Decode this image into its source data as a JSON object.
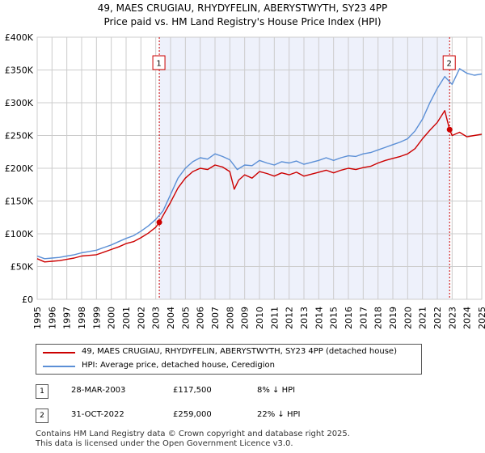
{
  "title_line1": "49, MAES CRUGIAU, RHYDYFELIN, ABERYSTWYTH, SY23 4PP",
  "title_line2": "Price paid vs. HM Land Registry's House Price Index (HPI)",
  "colors": {
    "property": "#cc0000",
    "hpi": "#5b8fd6",
    "band": "#eef1fb",
    "grid": "#cccccc",
    "marker": "#cc0000"
  },
  "chart_data": {
    "type": "line",
    "title": "49, MAES CRUGIAU, RHYDYFELIN, ABERYSTWYTH, SY23 4PP — Price paid vs. HM Land Registry's House Price Index (HPI)",
    "xlabel": "",
    "ylabel": "",
    "xlim": [
      1995,
      2025
    ],
    "ylim": [
      0,
      400000
    ],
    "y_ticks": [
      0,
      50000,
      100000,
      150000,
      200000,
      250000,
      300000,
      350000,
      400000
    ],
    "y_tick_labels": [
      "£0",
      "£50K",
      "£100K",
      "£150K",
      "£200K",
      "£250K",
      "£300K",
      "£350K",
      "£400K"
    ],
    "x_ticks": [
      1995,
      1996,
      1997,
      1998,
      1999,
      2000,
      2001,
      2002,
      2003,
      2004,
      2005,
      2006,
      2007,
      2008,
      2009,
      2010,
      2011,
      2012,
      2013,
      2014,
      2015,
      2016,
      2017,
      2018,
      2019,
      2020,
      2021,
      2022,
      2023,
      2024,
      2025
    ],
    "grid": true,
    "shaded_ranges": [
      [
        2003.24,
        2022.83
      ]
    ],
    "series": [
      {
        "name": "49, MAES CRUGIAU, RHYDYFELIN, ABERYSTWYTH, SY23 4PP (detached house)",
        "color": "#cc0000",
        "x": [
          1995,
          1995.5,
          1996,
          1996.5,
          1997,
          1997.5,
          1998,
          1998.5,
          1999,
          1999.5,
          2000,
          2000.5,
          2001,
          2001.5,
          2002,
          2002.5,
          2003,
          2003.24,
          2003.5,
          2004,
          2004.5,
          2005,
          2005.5,
          2006,
          2006.5,
          2007,
          2007.5,
          2008,
          2008.3,
          2008.6,
          2009,
          2009.5,
          2010,
          2010.5,
          2011,
          2011.5,
          2012,
          2012.5,
          2013,
          2013.5,
          2014,
          2014.5,
          2015,
          2015.5,
          2016,
          2016.5,
          2017,
          2017.5,
          2018,
          2018.5,
          2019,
          2019.5,
          2020,
          2020.5,
          2021,
          2021.5,
          2022,
          2022.5,
          2022.83,
          2023,
          2023.5,
          2024,
          2024.5,
          2025
        ],
        "values": [
          62000,
          57000,
          58000,
          59000,
          61000,
          63000,
          66000,
          67000,
          68000,
          72000,
          76000,
          80000,
          85000,
          88000,
          94000,
          101000,
          110000,
          117500,
          128000,
          148000,
          170000,
          185000,
          195000,
          200000,
          198000,
          205000,
          202000,
          195000,
          168000,
          182000,
          190000,
          185000,
          195000,
          192000,
          188000,
          193000,
          190000,
          194000,
          188000,
          191000,
          194000,
          197000,
          193000,
          197000,
          200000,
          198000,
          201000,
          203000,
          208000,
          212000,
          215000,
          218000,
          222000,
          230000,
          245000,
          258000,
          270000,
          288000,
          259000,
          250000,
          255000,
          248000,
          250000,
          252000
        ]
      },
      {
        "name": "HPI: Average price, detached house, Ceredigion",
        "color": "#5b8fd6",
        "x": [
          1995,
          1995.5,
          1996,
          1996.5,
          1997,
          1997.5,
          1998,
          1998.5,
          1999,
          1999.5,
          2000,
          2000.5,
          2001,
          2001.5,
          2002,
          2002.5,
          2003,
          2003.5,
          2004,
          2004.5,
          2005,
          2005.5,
          2006,
          2006.5,
          2007,
          2007.5,
          2008,
          2008.5,
          2009,
          2009.5,
          2010,
          2010.5,
          2011,
          2011.5,
          2012,
          2012.5,
          2013,
          2013.5,
          2014,
          2014.5,
          2015,
          2015.5,
          2016,
          2016.5,
          2017,
          2017.5,
          2018,
          2018.5,
          2019,
          2019.5,
          2020,
          2020.5,
          2021,
          2021.5,
          2022,
          2022.5,
          2023,
          2023.5,
          2024,
          2024.5,
          2025
        ],
        "values": [
          66000,
          62000,
          63000,
          64000,
          66000,
          68000,
          71000,
          73000,
          75000,
          79000,
          83000,
          88000,
          93000,
          97000,
          104000,
          112000,
          122000,
          135000,
          160000,
          185000,
          200000,
          210000,
          216000,
          214000,
          222000,
          218000,
          213000,
          198000,
          205000,
          204000,
          212000,
          208000,
          205000,
          210000,
          208000,
          211000,
          206000,
          209000,
          212000,
          216000,
          212000,
          216000,
          219000,
          218000,
          222000,
          224000,
          228000,
          232000,
          236000,
          240000,
          245000,
          257000,
          275000,
          300000,
          322000,
          340000,
          328000,
          352000,
          345000,
          342000,
          344000
        ]
      }
    ],
    "annotations": [
      {
        "label": "1",
        "x": 2003.24,
        "y": 117500
      },
      {
        "label": "2",
        "x": 2022.83,
        "y": 259000
      }
    ]
  },
  "legend": {
    "property_label": "49, MAES CRUGIAU, RHYDYFELIN, ABERYSTWYTH, SY23 4PP (detached house)",
    "hpi_label": "HPI: Average price, detached house, Ceredigion"
  },
  "sales": [
    {
      "num": "1",
      "date": "28-MAR-2003",
      "price": "£117,500",
      "diff": "8% ↓ HPI"
    },
    {
      "num": "2",
      "date": "31-OCT-2022",
      "price": "£259,000",
      "diff": "22% ↓ HPI"
    }
  ],
  "footer": {
    "line1": "Contains HM Land Registry data © Crown copyright and database right 2025.",
    "line2": "This data is licensed under the Open Government Licence v3.0."
  }
}
